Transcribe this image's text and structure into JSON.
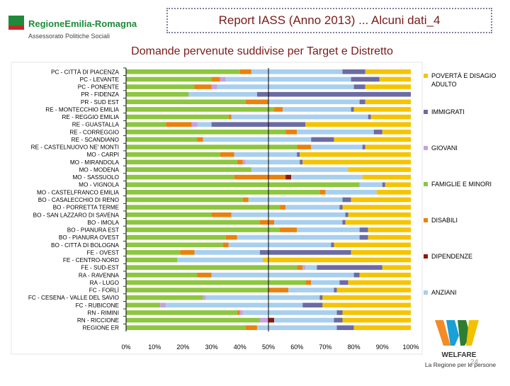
{
  "header": {
    "brand_name": "RegioneEmilia-Romagna",
    "brand_sub": "Assessorato Politiche Sociali",
    "report_title": "Report IASS (Anno 2013) ... Alcuni dati_4"
  },
  "footer": {
    "logo_word": "WELFARE",
    "logo_tag": "La Regione per le persone",
    "page_number": "24"
  },
  "colors": {
    "title": "#7a1a1a",
    "povertà": "#f5c400",
    "immigrati": "#6b6ba5",
    "giovani": "#c9a0e0",
    "famiglie": "#8dc63f",
    "disabili": "#e8820c",
    "dipendenze": "#8b1a0a",
    "anziani": "#a8cfee"
  },
  "chart_data": {
    "type": "bar",
    "orientation": "horizontal",
    "stacked": "percent",
    "title": "Domande pervenute suddivise per Target e Distretto",
    "xlim": [
      0,
      100
    ],
    "x_ticks": [
      "0%",
      "10%",
      "20%",
      "30%",
      "40%",
      "50%",
      "60%",
      "70%",
      "80%",
      "90%",
      "100%"
    ],
    "grid": false,
    "legend_position": "right",
    "categories": [
      "PC - CITTÀ DI PIACENZA",
      "PC - LEVANTE",
      "PC - PONENTE",
      "PR - FIDENZA",
      "PR - SUD EST",
      "RE - MONTECCHIO EMILIA",
      "RE - REGGIO EMILIA",
      "RE - GUASTALLA",
      "RE - CORREGGIO",
      "RE - SCANDIANO",
      "RE - CASTELNUOVO NE' MONTI",
      "MO - CARPI",
      "MO - MIRANDOLA",
      "MO - MODENA",
      "MO - SASSUOLO",
      "MO - VIGNOLA",
      "MO - CASTELFRANCO EMILIA",
      "BO - CASALECCHIO DI RENO",
      "BO - PORRETTA TERME",
      "BO - SAN LAZZARO DI SAVENA",
      "BO - IMOLA",
      "BO - PIANURA EST",
      "BO - PIANURA OVEST",
      "BO - CITTÀ DI BOLOGNA",
      "FE - OVEST",
      "FE - CENTRO-NORD",
      "FE - SUD-EST",
      "RA - RAVENNA",
      "RA - LUGO",
      "FC - FORLÌ",
      "FC - CESENA - VALLE DEL SAVIO",
      "FC - RUBICONE",
      "RN - RIMINI",
      "RN - RICCIONE",
      "REGIONE ER"
    ],
    "series": [
      {
        "name": "FAMIGLIE E MINORI",
        "color": "#8dc63f",
        "values": [
          40,
          30,
          24,
          22,
          42,
          52,
          36,
          14,
          56,
          25,
          60,
          33,
          39,
          44,
          38,
          82,
          68,
          41,
          54,
          30,
          47,
          54,
          35,
          34,
          19,
          18,
          60,
          25,
          63,
          50,
          27,
          12,
          39,
          47,
          42
        ]
      },
      {
        "name": "DISABILI",
        "color": "#e8820c",
        "values": [
          4,
          3,
          6,
          0,
          8,
          3,
          1,
          9,
          4,
          2,
          5,
          5,
          2,
          0,
          18,
          0,
          2,
          2,
          2,
          7,
          5,
          6,
          4,
          2,
          5,
          0,
          2,
          5,
          2,
          7,
          0,
          0,
          1,
          0,
          4
        ]
      },
      {
        "name": "GIOVANI",
        "color": "#c9a0e0",
        "values": [
          0,
          2,
          2,
          0,
          0,
          0,
          0,
          2,
          0,
          0,
          0,
          0,
          1,
          0,
          0,
          0,
          0,
          0,
          0,
          0,
          0,
          0,
          0,
          0,
          0,
          0,
          1,
          0,
          0,
          0,
          1,
          2,
          1,
          3,
          0
        ]
      },
      {
        "name": "DIPENDENZE",
        "color": "#8b1a0a",
        "values": [
          0,
          0,
          0,
          0,
          0,
          0,
          0,
          0,
          0,
          0,
          0,
          0,
          0,
          0,
          2,
          0,
          0,
          0,
          0,
          0,
          0,
          0,
          0,
          0,
          0,
          0,
          0,
          0,
          0,
          0,
          0,
          0,
          0,
          2,
          0
        ]
      },
      {
        "name": "ANZIANI",
        "color": "#a8cfee",
        "values": [
          32,
          44,
          48,
          24,
          32,
          24,
          48,
          5,
          27,
          38,
          18,
          22,
          19,
          34,
          25,
          8,
          18,
          33,
          19,
          40,
          24,
          22,
          43,
          36,
          23,
          30,
          4,
          50,
          10,
          16,
          40,
          48,
          33,
          21,
          28
        ]
      },
      {
        "name": "IMMIGRATI",
        "color": "#6b6ba5",
        "values": [
          8,
          10,
          4,
          54,
          2,
          1,
          1,
          33,
          3,
          8,
          1,
          1,
          1,
          0,
          0,
          1,
          0,
          3,
          1,
          1,
          1,
          3,
          3,
          1,
          32,
          0,
          23,
          2,
          3,
          1,
          1,
          7,
          2,
          3,
          6
        ]
      },
      {
        "name": "POVERTÀ E DISAGIO ADULTO",
        "color": "#f5c400",
        "values": [
          16,
          11,
          16,
          0,
          16,
          20,
          14,
          37,
          10,
          27,
          16,
          39,
          38,
          22,
          17,
          9,
          12,
          21,
          24,
          22,
          23,
          15,
          15,
          27,
          21,
          52,
          10,
          18,
          22,
          26,
          31,
          31,
          24,
          24,
          20
        ]
      }
    ],
    "legend": [
      {
        "label": "POVERTÀ E DISAGIO ADULTO",
        "color": "#f5c400"
      },
      {
        "label": "IMMIGRATI",
        "color": "#6b6ba5"
      },
      {
        "label": "GIOVANI",
        "color": "#c9a0e0"
      },
      {
        "label": "FAMIGLIE E MINORI",
        "color": "#8dc63f"
      },
      {
        "label": "DISABILI",
        "color": "#e8820c"
      },
      {
        "label": "DIPENDENZE",
        "color": "#8b1a0a"
      },
      {
        "label": "ANZIANI",
        "color": "#a8cfee"
      }
    ]
  }
}
